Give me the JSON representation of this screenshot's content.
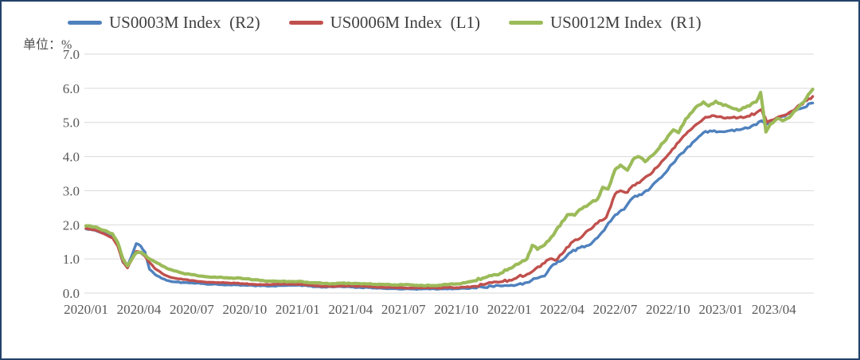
{
  "unit_label": "单位：%",
  "legend": [
    {
      "label": "US0003M Index  (R2)",
      "color": "#4F81BD"
    },
    {
      "label": "US0006M Index  (L1)",
      "color": "#C0504D"
    },
    {
      "label": "US0012M Index  (R1)",
      "color": "#9BBB59"
    }
  ],
  "colors": {
    "gridline": "#d9d9d9",
    "axis_text": "#595959",
    "frame_border": "#24426b"
  },
  "chart_data": {
    "type": "line",
    "title": "",
    "unit_label": "单位：%",
    "ylabel": "",
    "xlabel": "",
    "ylim": [
      0.0,
      7.0
    ],
    "ytick_labels": [
      "0.0",
      "1.0",
      "2.0",
      "3.0",
      "4.0",
      "5.0",
      "6.0",
      "7.0"
    ],
    "x_tick_labels": [
      "2020/01",
      "2020/04",
      "2020/07",
      "2020/10",
      "2021/01",
      "2021/04",
      "2021/07",
      "2021/10",
      "2022/01",
      "2022/04",
      "2022/07",
      "2022/10",
      "2023/01",
      "2023/04"
    ],
    "x_definition": "points are [months_since_2020/01, percent]",
    "grid": "horizontal",
    "legend_position": "top",
    "series": [
      {
        "name": "US0003M Index  (R2)",
        "color": "#4F81BD",
        "points": [
          [
            0,
            1.88
          ],
          [
            0.5,
            1.84
          ],
          [
            1,
            1.76
          ],
          [
            1.5,
            1.68
          ],
          [
            1.8,
            1.4
          ],
          [
            2.1,
            0.9
          ],
          [
            2.35,
            0.77
          ],
          [
            2.6,
            1.1
          ],
          [
            2.85,
            1.45
          ],
          [
            3.1,
            1.38
          ],
          [
            3.35,
            1.2
          ],
          [
            3.6,
            0.7
          ],
          [
            3.9,
            0.55
          ],
          [
            4.3,
            0.43
          ],
          [
            4.7,
            0.36
          ],
          [
            5,
            0.33
          ],
          [
            5.5,
            0.31
          ],
          [
            6,
            0.3
          ],
          [
            6.5,
            0.28
          ],
          [
            7,
            0.26
          ],
          [
            7.5,
            0.25
          ],
          [
            8,
            0.24
          ],
          [
            8.5,
            0.24
          ],
          [
            9,
            0.23
          ],
          [
            9.5,
            0.22
          ],
          [
            10,
            0.22
          ],
          [
            10.5,
            0.21
          ],
          [
            11,
            0.22
          ],
          [
            11.5,
            0.23
          ],
          [
            12,
            0.23
          ],
          [
            12.5,
            0.22
          ],
          [
            13,
            0.19
          ],
          [
            13.5,
            0.18
          ],
          [
            14,
            0.18
          ],
          [
            14.5,
            0.19
          ],
          [
            15,
            0.18
          ],
          [
            15.5,
            0.17
          ],
          [
            16,
            0.16
          ],
          [
            16.5,
            0.14
          ],
          [
            17,
            0.13
          ],
          [
            17.5,
            0.13
          ],
          [
            18,
            0.12
          ],
          [
            18.5,
            0.12
          ],
          [
            19,
            0.12
          ],
          [
            19.5,
            0.12
          ],
          [
            20,
            0.12
          ],
          [
            20.5,
            0.12
          ],
          [
            21,
            0.13
          ],
          [
            21.5,
            0.14
          ],
          [
            22,
            0.15
          ],
          [
            22.5,
            0.17
          ],
          [
            23,
            0.2
          ],
          [
            23.5,
            0.21
          ],
          [
            24,
            0.22
          ],
          [
            24.5,
            0.26
          ],
          [
            25,
            0.31
          ],
          [
            25.5,
            0.43
          ],
          [
            26,
            0.5
          ],
          [
            26.5,
            0.84
          ],
          [
            27,
            0.96
          ],
          [
            27.5,
            1.2
          ],
          [
            28,
            1.33
          ],
          [
            28.5,
            1.4
          ],
          [
            29,
            1.62
          ],
          [
            29.5,
            1.95
          ],
          [
            30,
            2.29
          ],
          [
            30.5,
            2.45
          ],
          [
            31,
            2.79
          ],
          [
            31.5,
            2.88
          ],
          [
            32,
            3.08
          ],
          [
            32.5,
            3.35
          ],
          [
            33,
            3.62
          ],
          [
            33.5,
            3.95
          ],
          [
            34,
            4.21
          ],
          [
            34.5,
            4.46
          ],
          [
            35,
            4.7
          ],
          [
            35.5,
            4.74
          ],
          [
            36,
            4.73
          ],
          [
            36.5,
            4.76
          ],
          [
            37,
            4.78
          ],
          [
            37.5,
            4.83
          ],
          [
            38,
            4.93
          ],
          [
            38.3,
            5.05
          ],
          [
            38.6,
            4.95
          ],
          [
            39,
            5.08
          ],
          [
            39.5,
            5.18
          ],
          [
            40,
            5.28
          ],
          [
            40.5,
            5.4
          ],
          [
            41.2,
            5.57
          ]
        ]
      },
      {
        "name": "US0006M Index  (L1)",
        "color": "#C0504D",
        "points": [
          [
            0,
            1.89
          ],
          [
            0.5,
            1.85
          ],
          [
            1,
            1.74
          ],
          [
            1.5,
            1.62
          ],
          [
            1.8,
            1.38
          ],
          [
            2.1,
            0.92
          ],
          [
            2.35,
            0.74
          ],
          [
            2.6,
            0.98
          ],
          [
            2.85,
            1.22
          ],
          [
            3.1,
            1.18
          ],
          [
            3.35,
            1.08
          ],
          [
            3.6,
            0.9
          ],
          [
            3.9,
            0.72
          ],
          [
            4.3,
            0.58
          ],
          [
            4.7,
            0.48
          ],
          [
            5,
            0.44
          ],
          [
            5.5,
            0.4
          ],
          [
            6,
            0.37
          ],
          [
            6.5,
            0.34
          ],
          [
            7,
            0.32
          ],
          [
            7.5,
            0.31
          ],
          [
            8,
            0.3
          ],
          [
            8.5,
            0.29
          ],
          [
            9,
            0.27
          ],
          [
            9.5,
            0.26
          ],
          [
            10,
            0.25
          ],
          [
            10.5,
            0.25
          ],
          [
            11,
            0.26
          ],
          [
            11.5,
            0.26
          ],
          [
            12,
            0.26
          ],
          [
            12.5,
            0.24
          ],
          [
            13,
            0.21
          ],
          [
            13.5,
            0.2
          ],
          [
            14,
            0.2
          ],
          [
            14.5,
            0.21
          ],
          [
            15,
            0.21
          ],
          [
            15.5,
            0.2
          ],
          [
            16,
            0.19
          ],
          [
            16.5,
            0.17
          ],
          [
            17,
            0.16
          ],
          [
            17.5,
            0.16
          ],
          [
            18,
            0.15
          ],
          [
            18.5,
            0.15
          ],
          [
            19,
            0.15
          ],
          [
            19.5,
            0.15
          ],
          [
            20,
            0.15
          ],
          [
            20.5,
            0.16
          ],
          [
            21,
            0.16
          ],
          [
            21.5,
            0.17
          ],
          [
            22,
            0.2
          ],
          [
            22.5,
            0.25
          ],
          [
            23,
            0.3
          ],
          [
            23.5,
            0.33
          ],
          [
            24,
            0.38
          ],
          [
            24.5,
            0.48
          ],
          [
            25,
            0.55
          ],
          [
            25.5,
            0.72
          ],
          [
            26,
            0.88
          ],
          [
            26.3,
            1.0
          ],
          [
            26.6,
            0.96
          ],
          [
            27,
            1.15
          ],
          [
            27.5,
            1.47
          ],
          [
            28,
            1.6
          ],
          [
            28.5,
            1.85
          ],
          [
            29,
            2.05
          ],
          [
            29.5,
            2.22
          ],
          [
            30,
            2.9
          ],
          [
            30.3,
            3.0
          ],
          [
            30.7,
            2.95
          ],
          [
            31,
            3.15
          ],
          [
            31.5,
            3.3
          ],
          [
            32,
            3.48
          ],
          [
            32.5,
            3.75
          ],
          [
            33,
            4.05
          ],
          [
            33.5,
            4.38
          ],
          [
            34,
            4.65
          ],
          [
            34.5,
            4.9
          ],
          [
            35,
            5.1
          ],
          [
            35.5,
            5.2
          ],
          [
            36,
            5.17
          ],
          [
            36.5,
            5.13
          ],
          [
            37,
            5.14
          ],
          [
            37.5,
            5.18
          ],
          [
            38,
            5.28
          ],
          [
            38.3,
            5.38
          ],
          [
            38.6,
            5.0
          ],
          [
            39,
            5.08
          ],
          [
            39.5,
            5.2
          ],
          [
            40,
            5.33
          ],
          [
            40.5,
            5.52
          ],
          [
            41.2,
            5.76
          ]
        ]
      },
      {
        "name": "US0012M Index  (R1)",
        "color": "#9BBB59",
        "points": [
          [
            0,
            1.97
          ],
          [
            0.5,
            1.94
          ],
          [
            1,
            1.84
          ],
          [
            1.5,
            1.74
          ],
          [
            1.8,
            1.48
          ],
          [
            2.1,
            1.0
          ],
          [
            2.35,
            0.8
          ],
          [
            2.6,
            1.0
          ],
          [
            2.85,
            1.18
          ],
          [
            3.1,
            1.2
          ],
          [
            3.35,
            1.12
          ],
          [
            3.6,
            1.0
          ],
          [
            3.9,
            0.92
          ],
          [
            4.3,
            0.8
          ],
          [
            4.7,
            0.7
          ],
          [
            5,
            0.65
          ],
          [
            5.5,
            0.58
          ],
          [
            6,
            0.54
          ],
          [
            6.5,
            0.5
          ],
          [
            7,
            0.47
          ],
          [
            7.5,
            0.46
          ],
          [
            8,
            0.45
          ],
          [
            8.5,
            0.44
          ],
          [
            9,
            0.42
          ],
          [
            9.5,
            0.39
          ],
          [
            10,
            0.37
          ],
          [
            10.5,
            0.35
          ],
          [
            11,
            0.34
          ],
          [
            11.5,
            0.34
          ],
          [
            12,
            0.34
          ],
          [
            12.5,
            0.32
          ],
          [
            13,
            0.3
          ],
          [
            13.5,
            0.28
          ],
          [
            14,
            0.28
          ],
          [
            14.5,
            0.29
          ],
          [
            15,
            0.28
          ],
          [
            15.5,
            0.28
          ],
          [
            16,
            0.27
          ],
          [
            16.5,
            0.25
          ],
          [
            17,
            0.25
          ],
          [
            17.5,
            0.24
          ],
          [
            18,
            0.24
          ],
          [
            18.5,
            0.24
          ],
          [
            19,
            0.23
          ],
          [
            19.5,
            0.22
          ],
          [
            20,
            0.23
          ],
          [
            20.5,
            0.25
          ],
          [
            21,
            0.27
          ],
          [
            21.5,
            0.3
          ],
          [
            22,
            0.36
          ],
          [
            22.5,
            0.44
          ],
          [
            23,
            0.51
          ],
          [
            23.5,
            0.58
          ],
          [
            24,
            0.72
          ],
          [
            24.5,
            0.85
          ],
          [
            25,
            1.0
          ],
          [
            25.3,
            1.4
          ],
          [
            25.6,
            1.28
          ],
          [
            26,
            1.41
          ],
          [
            26.5,
            1.7
          ],
          [
            27,
            2.1
          ],
          [
            27.3,
            2.3
          ],
          [
            27.7,
            2.28
          ],
          [
            28,
            2.45
          ],
          [
            28.5,
            2.6
          ],
          [
            29,
            2.75
          ],
          [
            29.3,
            3.1
          ],
          [
            29.6,
            3.05
          ],
          [
            30,
            3.62
          ],
          [
            30.3,
            3.75
          ],
          [
            30.7,
            3.6
          ],
          [
            31,
            3.9
          ],
          [
            31.3,
            4.0
          ],
          [
            31.7,
            3.85
          ],
          [
            32,
            4.0
          ],
          [
            32.5,
            4.25
          ],
          [
            33,
            4.6
          ],
          [
            33.3,
            4.78
          ],
          [
            33.6,
            4.7
          ],
          [
            34,
            5.1
          ],
          [
            34.5,
            5.4
          ],
          [
            35,
            5.6
          ],
          [
            35.3,
            5.48
          ],
          [
            35.7,
            5.62
          ],
          [
            36,
            5.55
          ],
          [
            36.5,
            5.45
          ],
          [
            37,
            5.35
          ],
          [
            37.5,
            5.48
          ],
          [
            38,
            5.6
          ],
          [
            38.25,
            5.88
          ],
          [
            38.55,
            4.72
          ],
          [
            38.8,
            4.95
          ],
          [
            39.2,
            5.12
          ],
          [
            39.5,
            5.05
          ],
          [
            40,
            5.22
          ],
          [
            40.4,
            5.45
          ],
          [
            40.7,
            5.6
          ],
          [
            41.2,
            5.97
          ]
        ]
      }
    ]
  }
}
